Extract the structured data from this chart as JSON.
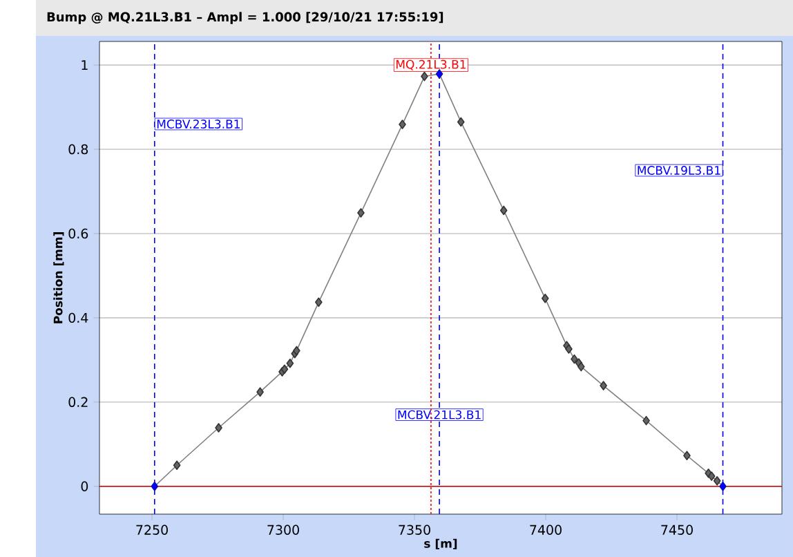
{
  "chart_data": {
    "type": "line",
    "title": "Bump @ MQ.21L3.B1 – Ampl = 1.000  [29/10/21 17:55:19]",
    "xlabel": "s [m]",
    "ylabel": "Position [mm]",
    "xlim": [
      7230,
      7490
    ],
    "xticks": [
      7250,
      7300,
      7350,
      7400,
      7450
    ],
    "ylim": [
      -0.066,
      1.056
    ],
    "yticks": [
      0,
      0.2,
      0.4,
      0.6,
      0.8,
      1
    ],
    "grid": "y",
    "marker": "diamond",
    "line_style": "solid",
    "series": [
      {
        "color": "#808080",
        "x": [
          7251,
          7259.5,
          7275.4,
          7291.2,
          7299.6,
          7300.5,
          7302.6,
          7304.4,
          7305.1,
          7313.5,
          7329.6,
          7345.4,
          7353.8,
          7359.5,
          7367.7,
          7384,
          7399.8,
          7408,
          7408.8,
          7410.9,
          7412.6,
          7413.5,
          7422,
          7438.3,
          7453.8,
          7462,
          7463.2,
          7465.3,
          7467.5
        ],
        "values": [
          0,
          0.05,
          0.139,
          0.224,
          0.272,
          0.278,
          0.292,
          0.315,
          0.322,
          0.437,
          0.649,
          0.859,
          0.973,
          0.979,
          0.865,
          0.655,
          0.446,
          0.334,
          0.326,
          0.302,
          0.293,
          0.284,
          0.239,
          0.156,
          0.073,
          0.031,
          0.024,
          0.013,
          0
        ]
      },
      {
        "type": "scatter",
        "color": "#0000ff",
        "x": [
          7251,
          7359.5,
          7467.5
        ],
        "values": [
          0,
          0.979,
          0
        ]
      }
    ],
    "ref_lines": [
      {
        "axis": "x",
        "value": 7251,
        "label": "MCBV.23L3.B1",
        "color": "#0000ff",
        "line_style": "dashed"
      },
      {
        "axis": "x",
        "value": 7359.5,
        "label": "MCBV.21L3.B1",
        "color": "#0000ff",
        "line_style": "dashed"
      },
      {
        "axis": "x",
        "value": 7467.5,
        "label": "MCBV.19L3.B1",
        "color": "#0000ff",
        "line_style": "dashed"
      },
      {
        "axis": "x",
        "value": 7356.3,
        "label": "MQ.21L3.B1",
        "color": "#ff0000",
        "line_style": "dotted"
      },
      {
        "axis": "y",
        "value": 0,
        "color": "#cc0000",
        "line_style": "solid"
      }
    ]
  }
}
